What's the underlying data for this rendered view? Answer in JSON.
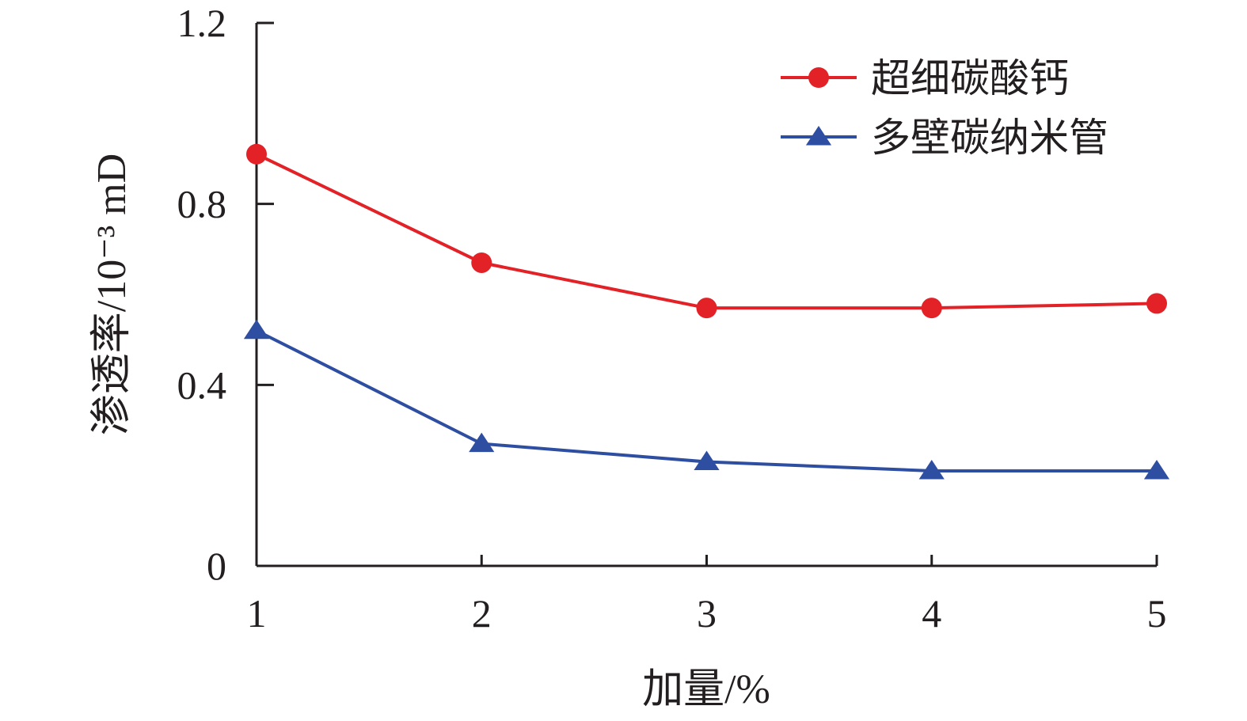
{
  "chart_data": {
    "type": "line",
    "xlabel": "加量/%",
    "ylabel": "渗透率/10⁻³ mD",
    "x": [
      1,
      2,
      3,
      4,
      5
    ],
    "xlim": [
      1,
      5
    ],
    "ylim": [
      0,
      1.2
    ],
    "y_ticks": [
      "0",
      "0.4",
      "0.8",
      "1.2"
    ],
    "y_tick_values": [
      0,
      0.4,
      0.8,
      1.2
    ],
    "x_ticks": [
      "1",
      "2",
      "3",
      "4",
      "5"
    ],
    "grid": false,
    "legend_position": "top-right",
    "series": [
      {
        "name": "超细碳酸钙",
        "marker": "circle",
        "color": "#e32228",
        "values": [
          0.91,
          0.67,
          0.57,
          0.57,
          0.58
        ]
      },
      {
        "name": "多壁碳纳米管",
        "marker": "triangle",
        "color": "#2e4ea2",
        "values": [
          0.52,
          0.27,
          0.23,
          0.21,
          0.21
        ]
      }
    ]
  }
}
